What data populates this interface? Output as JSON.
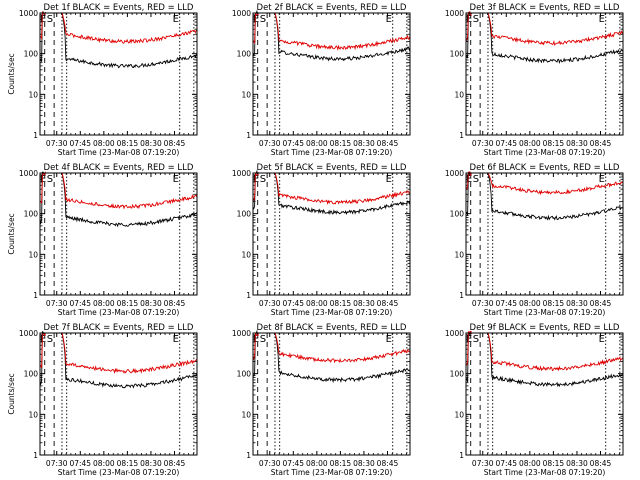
{
  "colors": {
    "events": "#000000",
    "lld": "#e00000",
    "axes": "#000000",
    "background": "#ffffff"
  },
  "chart_data": [
    {
      "type": "line",
      "title": "Det 1f BLACK = Events, RED = LLD",
      "xlabel": "Start Time (23-Mar-08 07:19:20)",
      "ylabel": "Counts/sec",
      "yscale": "log",
      "ylim": [
        1,
        1000
      ],
      "xlim_minutes": [
        0,
        100
      ],
      "xticks": [
        "07:30",
        "07:45",
        "08:00",
        "08:15",
        "08:30",
        "08:45"
      ],
      "yticks": [
        "1",
        "10",
        "100",
        "1000"
      ],
      "markers": [
        {
          "label": "E",
          "at": "07:21"
        },
        {
          "label": "S",
          "at": "07:24"
        }
      ],
      "series": [
        {
          "name": "Events",
          "level": 60,
          "peak": 1000
        },
        {
          "name": "LLD",
          "level": 240,
          "peak": 1000
        }
      ]
    },
    {
      "type": "line",
      "title": "Det 2f BLACK = Events, RED = LLD",
      "xlabel": "Start Time (23-Mar-08 07:19:20)",
      "ylabel": "",
      "yscale": "log",
      "ylim": [
        1,
        1000
      ],
      "xlim_minutes": [
        0,
        100
      ],
      "xticks": [
        "07:30",
        "07:45",
        "08:00",
        "08:15",
        "08:30",
        "08:45"
      ],
      "yticks": [
        "1",
        "10",
        "100",
        "1000"
      ],
      "markers": [
        {
          "label": "E",
          "at": "07:21"
        },
        {
          "label": "S",
          "at": "07:24"
        }
      ],
      "series": [
        {
          "name": "Events",
          "level": 90,
          "peak": 1000
        },
        {
          "name": "LLD",
          "level": 170,
          "peak": 1000
        }
      ]
    },
    {
      "type": "line",
      "title": "Det 3f BLACK = Events, RED = LLD",
      "xlabel": "Start Time (23-Mar-08 07:19:20)",
      "ylabel": "",
      "yscale": "log",
      "ylim": [
        1,
        1000
      ],
      "xlim_minutes": [
        0,
        100
      ],
      "xticks": [
        "07:30",
        "07:45",
        "08:00",
        "08:15",
        "08:30",
        "08:45"
      ],
      "yticks": [
        "1",
        "10",
        "100",
        "1000"
      ],
      "markers": [
        {
          "label": "E",
          "at": "07:21"
        },
        {
          "label": "S",
          "at": "07:24"
        }
      ],
      "series": [
        {
          "name": "Events",
          "level": 80,
          "peak": 1000
        },
        {
          "name": "LLD",
          "level": 220,
          "peak": 1000
        }
      ]
    },
    {
      "type": "line",
      "title": "Det 4f BLACK = Events, RED = LLD",
      "xlabel": "Start Time (23-Mar-08 07:19:20)",
      "ylabel": "Counts/sec",
      "yscale": "log",
      "ylim": [
        1,
        1000
      ],
      "xlim_minutes": [
        0,
        100
      ],
      "xticks": [
        "07:30",
        "07:45",
        "08:00",
        "08:15",
        "08:30",
        "08:45"
      ],
      "yticks": [
        "1",
        "10",
        "100",
        "1000"
      ],
      "markers": [
        {
          "label": "E",
          "at": "07:21"
        },
        {
          "label": "S",
          "at": "07:24"
        }
      ],
      "series": [
        {
          "name": "Events",
          "level": 65,
          "peak": 1000
        },
        {
          "name": "LLD",
          "level": 180,
          "peak": 1000
        }
      ]
    },
    {
      "type": "line",
      "title": "Det 5f BLACK = Events, RED = LLD",
      "xlabel": "Start Time (23-Mar-08 07:19:20)",
      "ylabel": "",
      "yscale": "log",
      "ylim": [
        1,
        1000
      ],
      "xlim_minutes": [
        0,
        100
      ],
      "xticks": [
        "07:30",
        "07:45",
        "08:00",
        "08:15",
        "08:30",
        "08:45"
      ],
      "yticks": [
        "1",
        "10",
        "100",
        "1000"
      ],
      "markers": [
        {
          "label": "E",
          "at": "07:21"
        },
        {
          "label": "S",
          "at": "07:24"
        }
      ],
      "series": [
        {
          "name": "Events",
          "level": 130,
          "peak": 1000
        },
        {
          "name": "LLD",
          "level": 230,
          "peak": 1000
        }
      ]
    },
    {
      "type": "line",
      "title": "Det 6f BLACK = Events, RED = LLD",
      "xlabel": "Start Time (23-Mar-08 07:19:20)",
      "ylabel": "",
      "yscale": "log",
      "ylim": [
        1,
        1000
      ],
      "xlim_minutes": [
        0,
        100
      ],
      "xticks": [
        "07:30",
        "07:45",
        "08:00",
        "08:15",
        "08:30",
        "08:45"
      ],
      "yticks": [
        "1",
        "10",
        "100",
        "1000"
      ],
      "markers": [
        {
          "label": "E",
          "at": "07:21"
        },
        {
          "label": "S",
          "at": "07:24"
        }
      ],
      "series": [
        {
          "name": "Events",
          "level": 95,
          "peak": 1000
        },
        {
          "name": "LLD",
          "level": 400,
          "peak": 1000
        }
      ]
    },
    {
      "type": "line",
      "title": "Det 7f BLACK = Events, RED = LLD",
      "xlabel": "Start Time (23-Mar-08 07:19:20)",
      "ylabel": "Counts/sec",
      "yscale": "log",
      "ylim": [
        1,
        1000
      ],
      "xlim_minutes": [
        0,
        100
      ],
      "xticks": [
        "07:30",
        "07:45",
        "08:00",
        "08:15",
        "08:30",
        "08:45"
      ],
      "yticks": [
        "1",
        "10",
        "100",
        "1000"
      ],
      "markers": [
        {
          "label": "E",
          "at": "07:21"
        },
        {
          "label": "S",
          "at": "07:24"
        }
      ],
      "series": [
        {
          "name": "Events",
          "level": 60,
          "peak": 1000
        },
        {
          "name": "LLD",
          "level": 140,
          "peak": 1000
        }
      ]
    },
    {
      "type": "line",
      "title": "Det 8f BLACK = Events, RED = LLD",
      "xlabel": "Start Time (23-Mar-08 07:19:20)",
      "ylabel": "",
      "yscale": "log",
      "ylim": [
        1,
        1000
      ],
      "xlim_minutes": [
        0,
        100
      ],
      "xticks": [
        "07:30",
        "07:45",
        "08:00",
        "08:15",
        "08:30",
        "08:45"
      ],
      "yticks": [
        "1",
        "10",
        "100",
        "1000"
      ],
      "markers": [
        {
          "label": "E",
          "at": "07:21"
        },
        {
          "label": "S",
          "at": "07:24"
        }
      ],
      "series": [
        {
          "name": "Events",
          "level": 85,
          "peak": 1000
        },
        {
          "name": "LLD",
          "level": 250,
          "peak": 1000
        }
      ]
    },
    {
      "type": "line",
      "title": "Det 9f BLACK = Events, RED = LLD",
      "xlabel": "Start Time (23-Mar-08 07:19:20)",
      "ylabel": "",
      "yscale": "log",
      "ylim": [
        1,
        1000
      ],
      "xlim_minutes": [
        0,
        100
      ],
      "xticks": [
        "07:30",
        "07:45",
        "08:00",
        "08:15",
        "08:30",
        "08:45"
      ],
      "yticks": [
        "1",
        "10",
        "100",
        "1000"
      ],
      "markers": [
        {
          "label": "E",
          "at": "07:21"
        },
        {
          "label": "S",
          "at": "07:24"
        }
      ],
      "series": [
        {
          "name": "Events",
          "level": 65,
          "peak": 1000
        },
        {
          "name": "LLD",
          "level": 160,
          "peak": 1000
        }
      ]
    }
  ]
}
